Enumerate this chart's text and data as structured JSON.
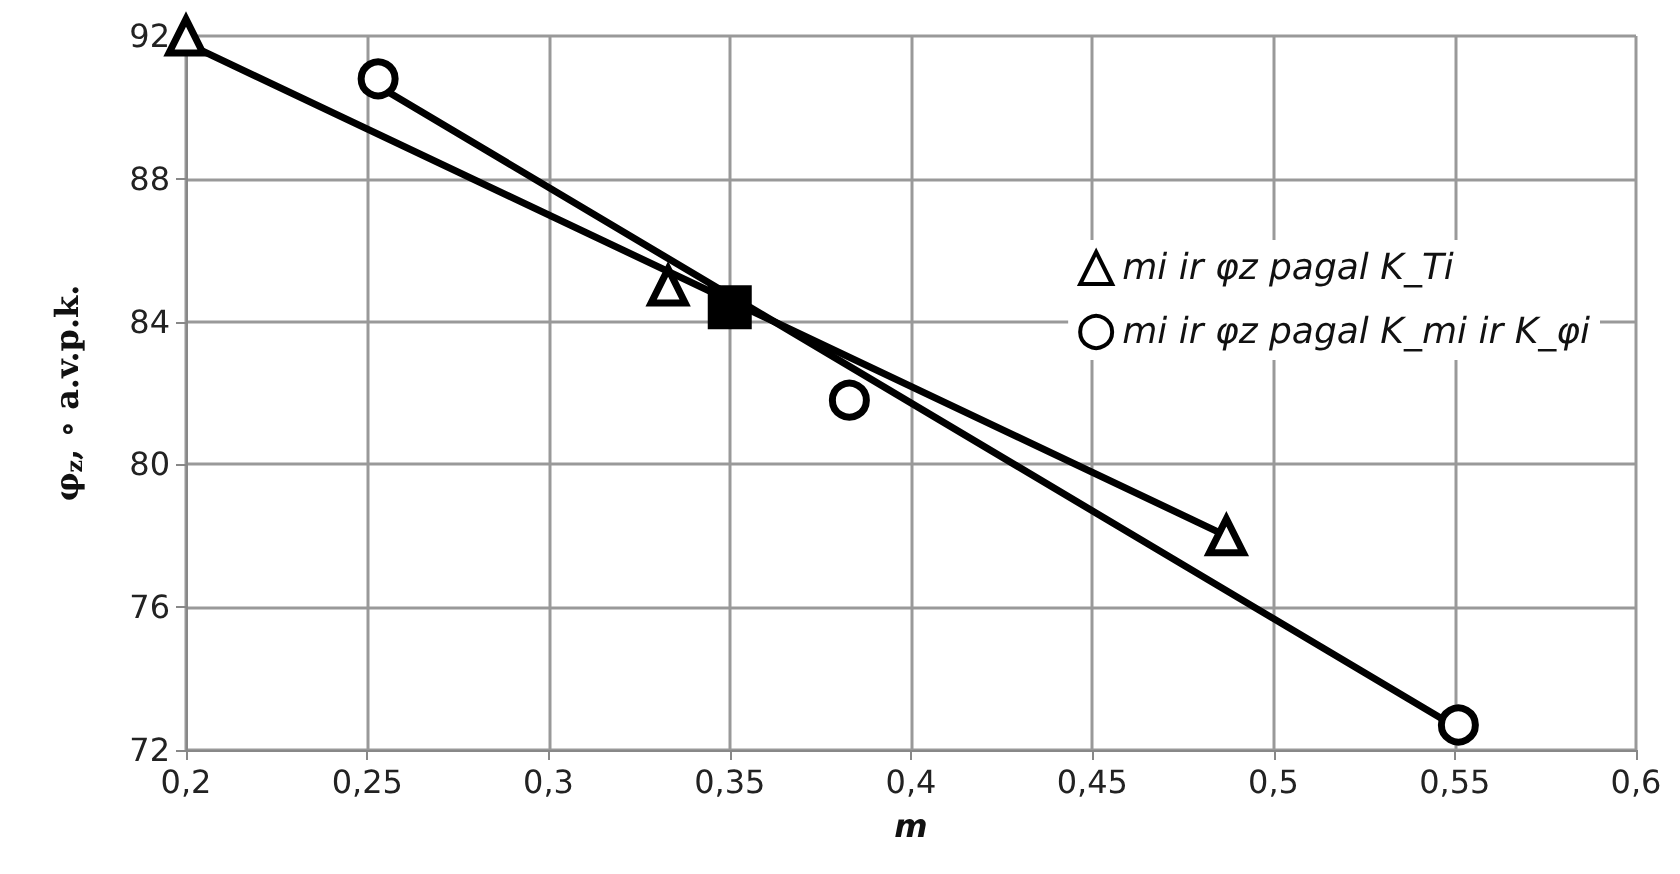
{
  "chart_data": {
    "type": "scatter",
    "xlabel": "m",
    "ylabel": "φ$_{z}$, ∘ a.v.p.k.",
    "xlim": [
      0.2,
      0.6
    ],
    "ylim": [
      72,
      92
    ],
    "xticks": [
      {
        "value": 0.2,
        "label": "0,2"
      },
      {
        "value": 0.25,
        "label": "0,25"
      },
      {
        "value": 0.3,
        "label": "0,3"
      },
      {
        "value": 0.35,
        "label": "0,35"
      },
      {
        "value": 0.4,
        "label": "0,4"
      },
      {
        "value": 0.45,
        "label": "0,45"
      },
      {
        "value": 0.5,
        "label": "0,5"
      },
      {
        "value": 0.55,
        "label": "0,55"
      },
      {
        "value": 0.6,
        "label": "0,6"
      }
    ],
    "yticks": [
      72,
      76,
      80,
      84,
      88,
      92
    ],
    "grid": true,
    "legend": "right",
    "series": [
      {
        "name": "mi ir φz pagal K_Ti",
        "marker": "triangle",
        "color": "#000000",
        "x": [
          0.2,
          0.333,
          0.487
        ],
        "values": [
          92,
          85,
          78
        ]
      },
      {
        "name": "mi ir φz pagal K_mi ir K_φi",
        "marker": "circle",
        "color": "#000000",
        "x": [
          0.253,
          0.383,
          0.551
        ],
        "values": [
          90.8,
          81.8,
          72.7
        ]
      },
      {
        "type": "line",
        "marker": "none",
        "color": "#000000",
        "x": [
          0.2,
          0.487
        ],
        "values": [
          91.8,
          78.0
        ]
      },
      {
        "type": "line",
        "marker": "none",
        "color": "#000000",
        "x": [
          0.253,
          0.551
        ],
        "values": [
          90.6,
          72.6
        ]
      },
      {
        "marker": "square",
        "color": "#000000",
        "x": [
          0.35
        ],
        "values": [
          84.4
        ]
      }
    ]
  }
}
